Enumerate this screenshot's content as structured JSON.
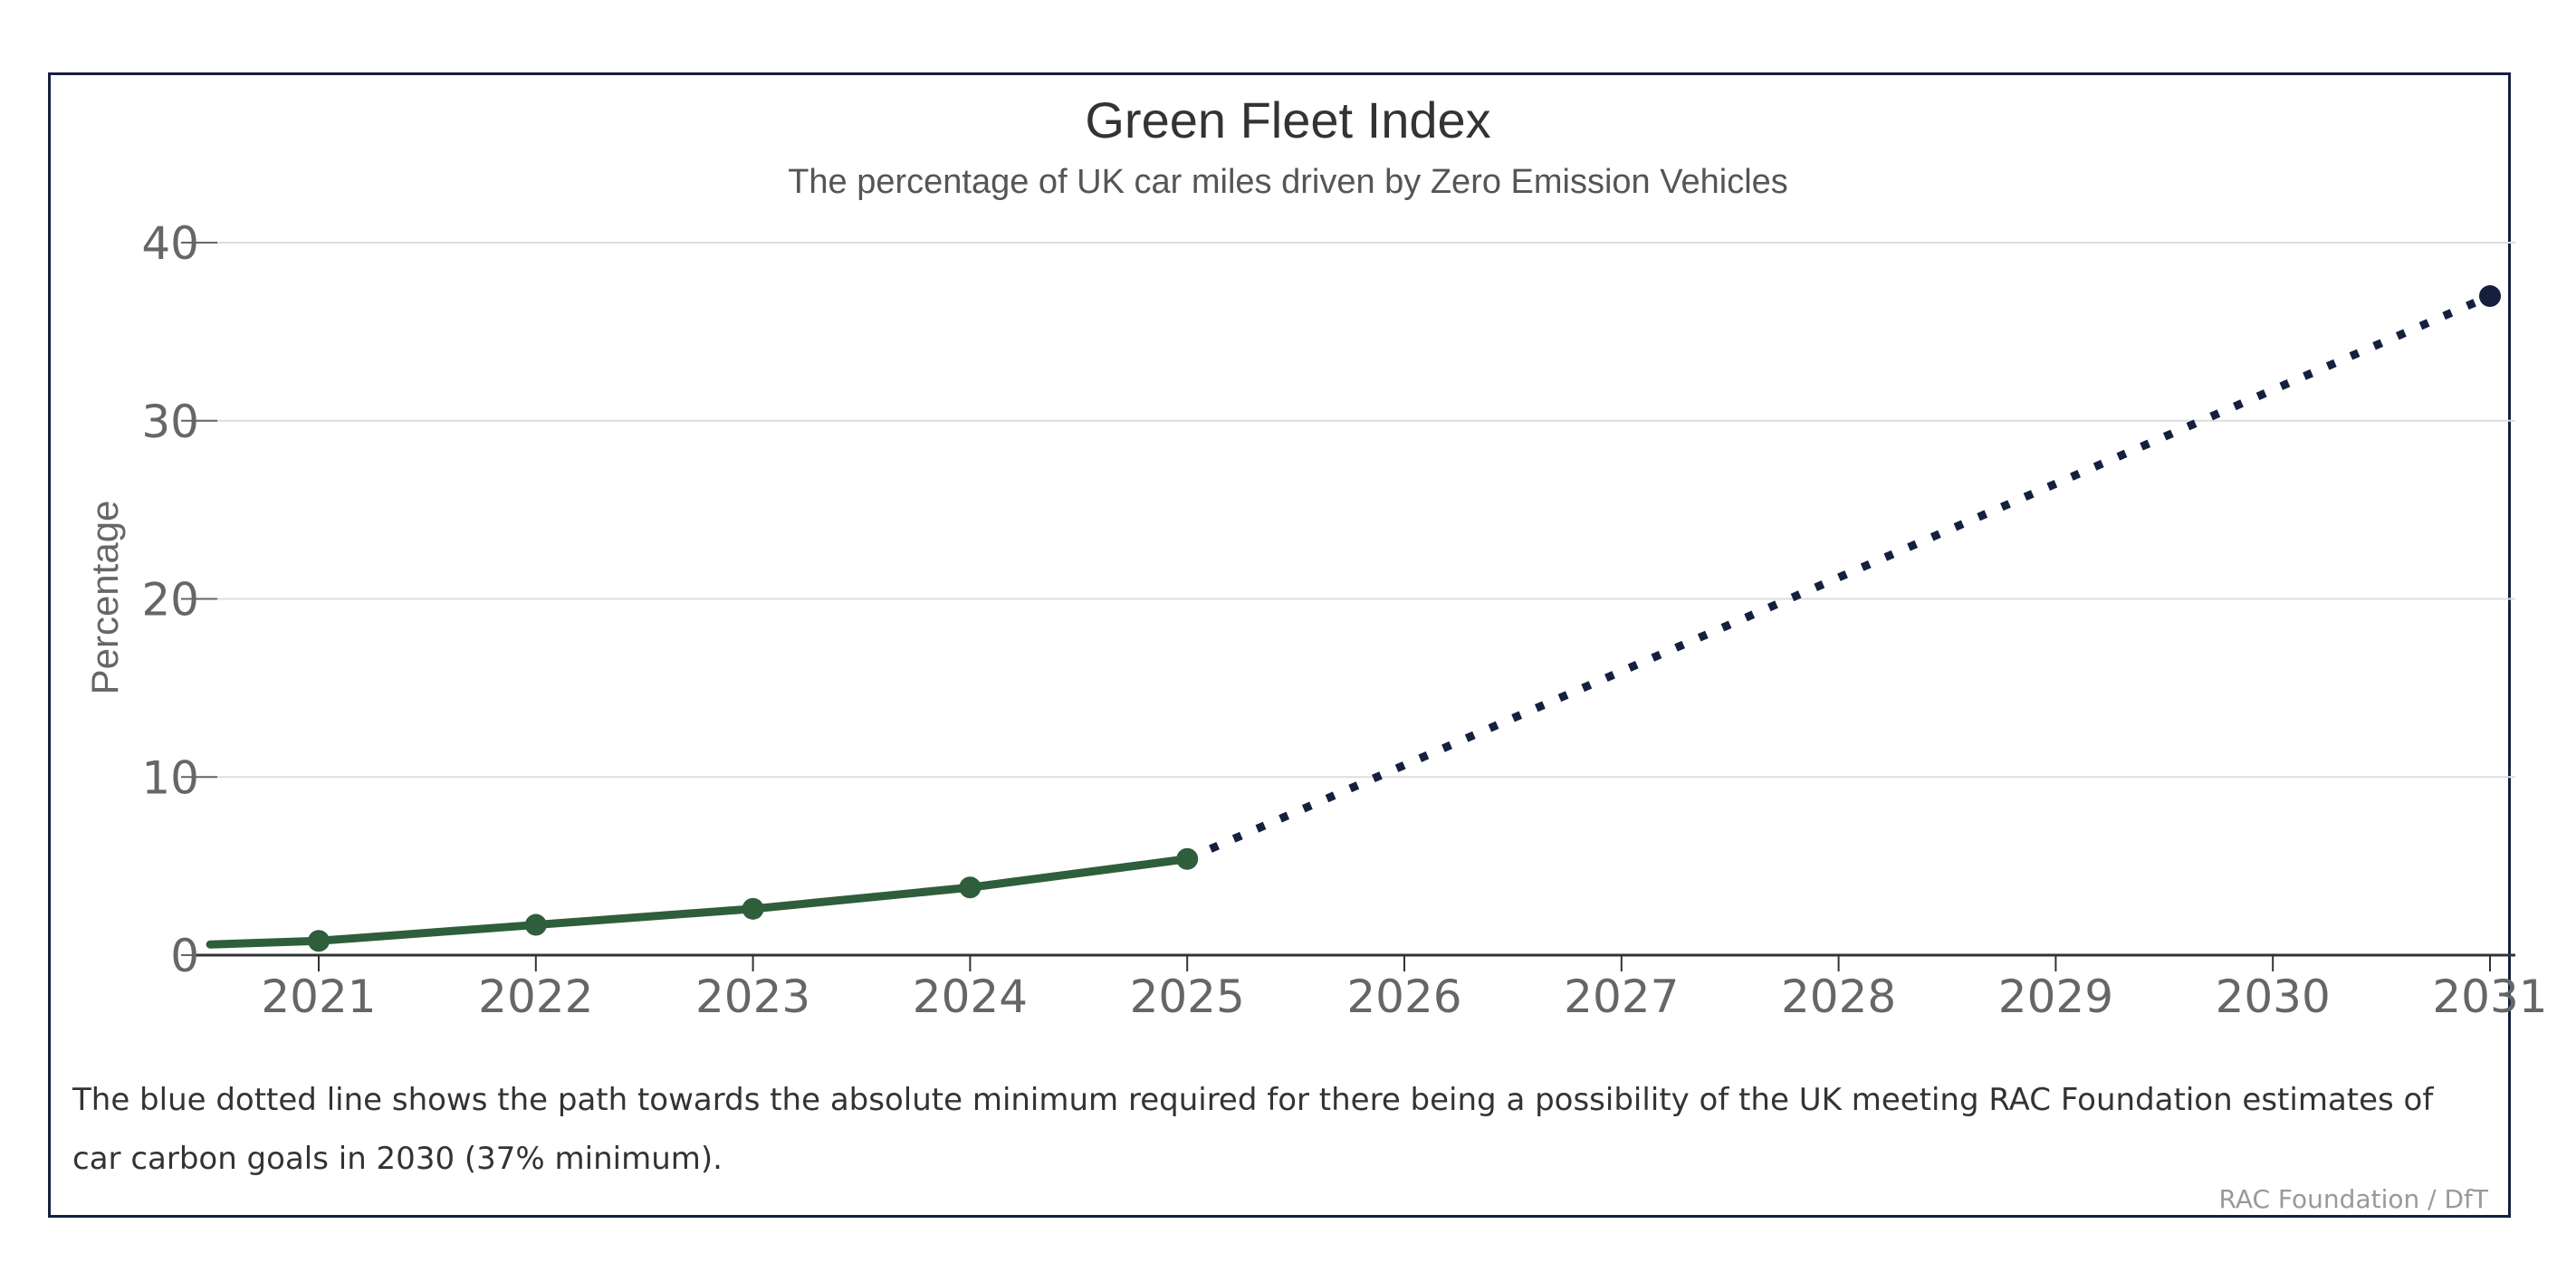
{
  "chart_data": {
    "type": "line",
    "title": "Green Fleet Index",
    "subtitle": "The percentage of UK car miles driven by Zero Emission Vehicles",
    "xlabel": "",
    "ylabel": "Percentage",
    "x_ticks": [
      "2021",
      "2022",
      "2023",
      "2024",
      "2025",
      "2026",
      "2027",
      "2028",
      "2029",
      "2030",
      "2031"
    ],
    "y_ticks": [
      "0",
      "10",
      "20",
      "30",
      "40"
    ],
    "xlim": [
      2020.5,
      2031.1
    ],
    "ylim": [
      0,
      40
    ],
    "grid": true,
    "series": [
      {
        "style": "solid",
        "color": "#2e5e3b",
        "line_start": {
          "x": 2020.5,
          "y": 0.6
        },
        "points": [
          {
            "x": 2021,
            "y": 0.8
          },
          {
            "x": 2022,
            "y": 1.7
          },
          {
            "x": 2023,
            "y": 2.6
          },
          {
            "x": 2024,
            "y": 3.8
          },
          {
            "x": 2025,
            "y": 5.4
          }
        ]
      },
      {
        "style": "dotted",
        "color": "#15203f",
        "points": [
          {
            "x": 2025,
            "y": 5.4
          },
          {
            "x": 2031,
            "y": 37
          }
        ],
        "marker_at_end": true
      }
    ]
  },
  "note": "The blue dotted line shows the path towards the absolute minimum required for there being a possibility of the UK meeting RAC Foundation estimates of car carbon goals in 2030 (37% minimum).",
  "source": "RAC Foundation / DfT",
  "colors": {
    "frame": "#15203f",
    "actual": "#2e5e3b",
    "target": "#15203f",
    "grid": "#dddddd"
  }
}
